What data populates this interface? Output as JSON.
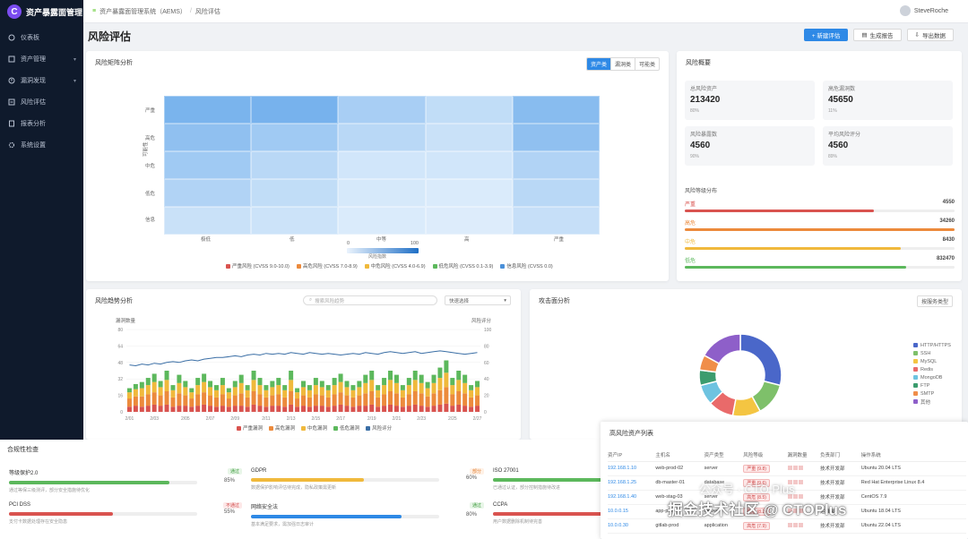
{
  "app": {
    "logo_letter": "C",
    "name": "资产暴露面管理"
  },
  "sidebar": {
    "items": [
      {
        "label": "仪表板",
        "icon": "dashboard-icon"
      },
      {
        "label": "资产管理",
        "icon": "asset-icon"
      },
      {
        "label": "漏洞发现",
        "icon": "bug-icon"
      },
      {
        "label": "风险评估",
        "icon": "risk-icon"
      },
      {
        "label": "报表分析",
        "icon": "report-icon"
      },
      {
        "label": "系统设置",
        "icon": "gear-icon"
      }
    ]
  },
  "breadcrumb": {
    "home": "资产暴露面管理系统（AEMS）",
    "current": "风险评估"
  },
  "user": {
    "name": "SteveRoche"
  },
  "page": {
    "title": "风险评估"
  },
  "actions": {
    "new": "+ 新建评估",
    "report": "生成报告",
    "export": "导出数据"
  },
  "heatmap": {
    "title": "风险矩阵分析",
    "segments": [
      "资产类",
      "漏洞类",
      "可能类"
    ],
    "y_labels": [
      "严重",
      "高危",
      "中危",
      "低危",
      "信息"
    ],
    "y_title": "可能性",
    "x_labels": [
      "极低",
      "低",
      "中等",
      "高",
      "严重"
    ],
    "scale_min": "0",
    "scale_max": "100",
    "scale_title": "风险指数",
    "legend": [
      {
        "label": "严重风险 (CVSS 9.0-10.0)",
        "color": "#d9534f"
      },
      {
        "label": "高危风险 (CVSS 7.0-8.9)",
        "color": "#ec8a3c"
      },
      {
        "label": "中危风险 (CVSS 4.0-6.9)",
        "color": "#f0b93c"
      },
      {
        "label": "低危风险 (CVSS 0.1-3.9)",
        "color": "#5cb85c"
      },
      {
        "label": "信息风险 (CVSS 0.0)",
        "color": "#4a90d9"
      }
    ],
    "cells": [
      [
        68,
        70,
        40,
        25,
        60
      ],
      [
        55,
        45,
        30,
        20,
        55
      ],
      [
        45,
        30,
        15,
        15,
        35
      ],
      [
        35,
        25,
        12,
        10,
        30
      ],
      [
        20,
        18,
        10,
        8,
        22
      ]
    ]
  },
  "overview": {
    "title": "风险概要",
    "stats": [
      {
        "label": "总风险资产",
        "value": "213420",
        "sub": "80%"
      },
      {
        "label": "高危漏洞数",
        "value": "45650",
        "sub": "11%"
      },
      {
        "label": "风险暴露数",
        "value": "4560",
        "sub": "90%"
      },
      {
        "label": "平均风险评分",
        "value": "4560",
        "sub": "89%"
      }
    ],
    "dist_title": "风险等级分布",
    "dist": [
      {
        "label": "严重",
        "value": "4550",
        "pct": 70,
        "color": "#d9534f"
      },
      {
        "label": "高危",
        "value": "34260",
        "pct": 100,
        "color": "#ec8a3c"
      },
      {
        "label": "中危",
        "value": "8430",
        "pct": 80,
        "color": "#f0b93c"
      },
      {
        "label": "低危",
        "value": "832470",
        "pct": 82,
        "color": "#5cb85c"
      }
    ]
  },
  "trend": {
    "title": "风险趋势分析",
    "search_placeholder": "搜索风险趋势",
    "select_label": "快速选择",
    "left_axis_title": "漏洞数量",
    "right_axis_title": "风险评分",
    "x_labels": [
      "2/01",
      "2/03",
      "2/05",
      "2/07",
      "2/09",
      "2/11",
      "2/13",
      "2/15",
      "2/17",
      "2/19",
      "2/21",
      "2/23",
      "2/25",
      "2/27"
    ],
    "legend": [
      {
        "label": "严重漏洞",
        "color": "#d9534f"
      },
      {
        "label": "高危漏洞",
        "color": "#ec8a3c"
      },
      {
        "label": "中危漏洞",
        "color": "#f0b93c"
      },
      {
        "label": "低危漏洞",
        "color": "#5cb85c"
      },
      {
        "label": "风险评分",
        "color": "#3a6ea5"
      }
    ]
  },
  "chart_data": [
    {
      "type": "heatmap",
      "title": "风险矩阵分析",
      "y": [
        "严重",
        "高危",
        "中危",
        "低危",
        "信息"
      ],
      "x": [
        "极低",
        "低",
        "中等",
        "高",
        "严重"
      ],
      "values": [
        [
          68,
          70,
          40,
          25,
          60
        ],
        [
          55,
          45,
          30,
          20,
          55
        ],
        [
          45,
          30,
          15,
          15,
          35
        ],
        [
          35,
          25,
          12,
          10,
          30
        ],
        [
          20,
          18,
          10,
          8,
          22
        ]
      ],
      "range": [
        0,
        100
      ]
    },
    {
      "type": "bar",
      "title": "风险趋势分析",
      "stacked": true,
      "ylim": [
        0,
        80
      ],
      "y2lim": [
        0,
        100
      ],
      "categories": [
        "1",
        "2",
        "3",
        "4",
        "5",
        "6",
        "7",
        "8",
        "9",
        "10",
        "11",
        "12",
        "13",
        "14",
        "15",
        "16",
        "17",
        "18",
        "19",
        "20",
        "21",
        "22",
        "23",
        "24",
        "25",
        "26",
        "27",
        "28",
        "29",
        "30",
        "31",
        "32",
        "33",
        "34",
        "35",
        "36",
        "37",
        "38",
        "39",
        "40",
        "41",
        "42",
        "43",
        "44",
        "45",
        "46",
        "47",
        "48",
        "49",
        "50",
        "51",
        "52",
        "53",
        "54",
        "55",
        "56",
        "57"
      ],
      "series": [
        {
          "name": "严重漏洞",
          "values": [
            5,
            6,
            5,
            6,
            7,
            6,
            7,
            5,
            6,
            6,
            5,
            6,
            7,
            6,
            5,
            6,
            5,
            6,
            6,
            5,
            7,
            6,
            5,
            6,
            6,
            5,
            7,
            5,
            6,
            5,
            6,
            6,
            5,
            6,
            7,
            6,
            5,
            6,
            6,
            7,
            5,
            6,
            7,
            6,
            5,
            6,
            7,
            6,
            5,
            6,
            7,
            8,
            6,
            7,
            6,
            5,
            6
          ]
        },
        {
          "name": "高危漏洞",
          "values": [
            8,
            9,
            10,
            11,
            12,
            10,
            13,
            9,
            12,
            10,
            8,
            11,
            12,
            10,
            9,
            11,
            8,
            10,
            12,
            9,
            13,
            11,
            9,
            10,
            11,
            9,
            13,
            8,
            10,
            9,
            11,
            10,
            9,
            11,
            12,
            10,
            9,
            10,
            12,
            13,
            9,
            11,
            13,
            12,
            9,
            11,
            13,
            12,
            10,
            12,
            14,
            16,
            11,
            13,
            12,
            9,
            10
          ]
        },
        {
          "name": "中危漏洞",
          "values": [
            6,
            7,
            8,
            9,
            10,
            8,
            11,
            7,
            10,
            8,
            6,
            9,
            10,
            8,
            7,
            9,
            6,
            8,
            10,
            7,
            11,
            9,
            7,
            8,
            9,
            7,
            11,
            6,
            8,
            7,
            9,
            8,
            7,
            9,
            10,
            8,
            7,
            8,
            10,
            11,
            7,
            9,
            11,
            10,
            7,
            9,
            11,
            10,
            8,
            10,
            12,
            14,
            9,
            11,
            10,
            7,
            8
          ]
        },
        {
          "name": "低危漏洞",
          "values": [
            4,
            5,
            6,
            7,
            8,
            6,
            9,
            5,
            8,
            6,
            4,
            7,
            8,
            6,
            5,
            7,
            4,
            6,
            8,
            5,
            9,
            7,
            5,
            6,
            7,
            5,
            9,
            4,
            6,
            5,
            7,
            6,
            5,
            7,
            8,
            6,
            5,
            6,
            8,
            9,
            5,
            7,
            9,
            8,
            5,
            7,
            9,
            8,
            6,
            8,
            10,
            12,
            7,
            9,
            8,
            5,
            6
          ]
        },
        {
          "name": "风险评分",
          "axis": "right",
          "values": [
            57,
            56,
            58,
            57,
            59,
            58,
            60,
            61,
            60,
            62,
            63,
            62,
            64,
            65,
            66,
            66,
            67,
            68,
            67,
            69,
            70,
            69,
            71,
            70,
            71,
            70,
            72,
            71,
            70,
            72,
            71,
            70,
            71,
            70,
            69,
            70,
            71,
            70,
            72,
            71,
            70,
            72,
            73,
            72,
            71,
            72,
            73,
            71,
            72,
            73,
            74,
            73,
            72,
            71,
            70,
            71,
            72
          ]
        }
      ]
    },
    {
      "type": "pie",
      "title": "攻击面分析",
      "donut": true,
      "labels": [
        "HTTP/HTTPS",
        "SSH",
        "MySQL",
        "Redis",
        "MongoDB",
        "FTP",
        "SMTP",
        "其他"
      ],
      "values": [
        29,
        13,
        11,
        10,
        8,
        6,
        6,
        17
      ],
      "colors": [
        "#4a67c9",
        "#7ec06a",
        "#f4c542",
        "#e96a6a",
        "#6ec3e0",
        "#3c9c6e",
        "#f08e4a",
        "#8e5fc9"
      ]
    }
  ],
  "attack": {
    "title": "攻击面分析",
    "select_label": "按服务类型",
    "legend": [
      {
        "label": "HTTP/HTTPS",
        "color": "#4a67c9"
      },
      {
        "label": "SSH",
        "color": "#7ec06a"
      },
      {
        "label": "MySQL",
        "color": "#f4c542"
      },
      {
        "label": "Redis",
        "color": "#e96a6a"
      },
      {
        "label": "MongoDB",
        "color": "#6ec3e0"
      },
      {
        "label": "FTP",
        "color": "#3c9c6e"
      },
      {
        "label": "SMTP",
        "color": "#f08e4a"
      },
      {
        "label": "其他",
        "color": "#8e5fc9"
      }
    ]
  },
  "compliance": {
    "title": "合规性检查",
    "items": [
      {
        "name": "等级保护2.0",
        "badge": "通过",
        "badge_kind": "ok",
        "pct": "85%",
        "fill": 85,
        "color": "#5cb85c",
        "desc": "通过等保三级测评，部分安全措施待优化"
      },
      {
        "name": "GDPR",
        "badge": "部分",
        "badge_kind": "warn",
        "pct": "60%",
        "fill": 60,
        "color": "#f0b93c",
        "desc": "数据保护影响评估待完成，隐私政策需更新"
      },
      {
        "name": "ISO 27001",
        "badge": "进行",
        "badge_kind": "info",
        "pct": "",
        "fill": 78,
        "color": "#5cb85c",
        "desc": "已通过认证，部分控制措施待改进"
      },
      {
        "name": "PCI DSS",
        "badge": "不通过",
        "badge_kind": "bad",
        "pct": "55%",
        "fill": 55,
        "color": "#d9534f",
        "desc": "支付卡数据处理存在安全隐患"
      },
      {
        "name": "网络安全法",
        "badge": "通过",
        "badge_kind": "ok",
        "pct": "80%",
        "fill": 80,
        "color": "#2e89e6",
        "desc": "基本满足要求，需加强日志审计"
      },
      {
        "name": "CCPA",
        "badge": "部分",
        "badge_kind": "warn",
        "pct": "",
        "fill": 65,
        "color": "#d9534f",
        "desc": "用户数据删除机制待完善"
      }
    ]
  },
  "assets": {
    "title": "高风险资产列表",
    "columns": [
      "资产IP",
      "主机名",
      "资产类型",
      "风险等级",
      "漏洞数量",
      "负责部门",
      "操作系统"
    ],
    "rows": [
      {
        "ip": "192.168.1.10",
        "host": "web-prod-02",
        "type": "server",
        "risk": "严重 (9.8)",
        "dept": "技术开发部",
        "os": "Ubuntu 20.04 LTS"
      },
      {
        "ip": "192.168.1.25",
        "host": "db-master-01",
        "type": "database",
        "risk": "严重 (9.6)",
        "dept": "技术开发部",
        "os": "Red Hat Enterprise Linux 8.4"
      },
      {
        "ip": "192.168.1.40",
        "host": "web-stag-03",
        "type": "server",
        "risk": "高危 (8.5)",
        "dept": "技术开发部",
        "os": "CentOS 7.9"
      },
      {
        "ip": "10.0.0.15",
        "host": "app-prd-01",
        "type": "server",
        "risk": "高危 (8.2)",
        "dept": "运维部",
        "os": "Ubuntu 18.04 LTS"
      },
      {
        "ip": "10.0.0.30",
        "host": "gitlab-prod",
        "type": "application",
        "risk": "高危 (7.9)",
        "dept": "技术开发部",
        "os": "Ubuntu 22.04 LTS"
      }
    ]
  },
  "watermark": {
    "line1": "公众号 · CTO Plus",
    "line2": "掘金技术社区 @ CTOPlus"
  }
}
